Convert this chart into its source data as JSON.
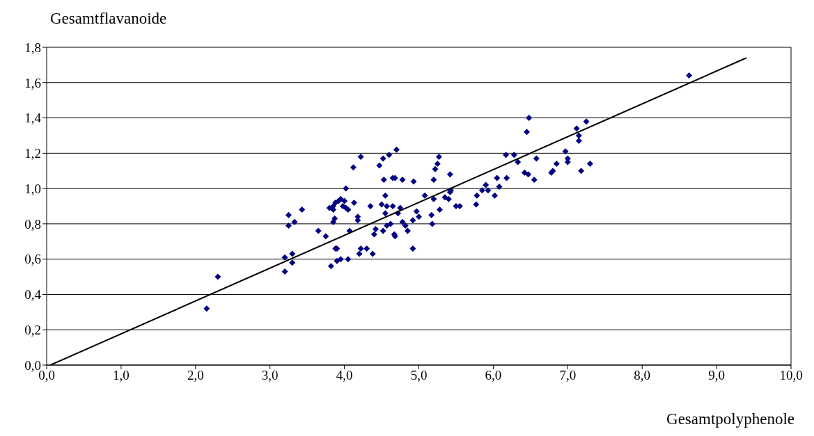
{
  "chart_data": {
    "type": "scatter",
    "xlabel": "Gesamtpolyphenole",
    "ylabel": "Gesamtflavanoide",
    "xlim": [
      0,
      10
    ],
    "ylim": [
      0,
      1.8
    ],
    "grid": "y",
    "xticks": [
      {
        "value": 0,
        "label": "0,0"
      },
      {
        "value": 1,
        "label": "1,0"
      },
      {
        "value": 2,
        "label": "2,0"
      },
      {
        "value": 3,
        "label": "3,0"
      },
      {
        "value": 4,
        "label": "4,0"
      },
      {
        "value": 5,
        "label": "5,0"
      },
      {
        "value": 6,
        "label": "6,0"
      },
      {
        "value": 7,
        "label": "7,0"
      },
      {
        "value": 8,
        "label": "8,0"
      },
      {
        "value": 9,
        "label": "9,0"
      },
      {
        "value": 10,
        "label": "10,0"
      }
    ],
    "yticks": [
      {
        "value": 0,
        "label": "0,0"
      },
      {
        "value": 0.2,
        "label": "0,2"
      },
      {
        "value": 0.4,
        "label": "0,4"
      },
      {
        "value": 0.6,
        "label": "0,6"
      },
      {
        "value": 0.8,
        "label": "0,8"
      },
      {
        "value": 1,
        "label": "1,0"
      },
      {
        "value": 1.2,
        "label": "1,2"
      },
      {
        "value": 1.4,
        "label": "1,4"
      },
      {
        "value": 1.6,
        "label": "1,6"
      },
      {
        "value": 1.8,
        "label": "1,8"
      }
    ],
    "series": [
      {
        "color": "#000080",
        "marker": "diamond",
        "x": [
          2.15,
          2.3,
          3.2,
          3.2,
          3.25,
          3.25,
          3.3,
          3.3,
          3.33,
          3.43,
          3.65,
          3.75,
          3.8,
          3.82,
          3.85,
          3.85,
          3.87,
          3.88,
          3.9,
          3.9,
          3.85,
          3.88,
          3.92,
          3.95,
          3.95,
          3.98,
          4.0,
          4.02,
          4.02,
          4.05,
          4.05,
          4.07,
          4.12,
          4.13,
          4.18,
          4.18,
          4.2,
          4.22,
          4.22,
          4.3,
          4.35,
          4.38,
          4.4,
          4.42,
          4.47,
          4.5,
          4.52,
          4.52,
          4.53,
          4.55,
          4.55,
          4.57,
          4.57,
          4.6,
          4.62,
          4.65,
          4.65,
          4.67,
          4.68,
          4.68,
          4.7,
          4.72,
          4.75,
          4.78,
          4.78,
          4.82,
          4.85,
          4.92,
          4.92,
          4.93,
          4.97,
          5.0,
          5.08,
          5.17,
          5.18,
          5.2,
          5.2,
          5.22,
          5.25,
          5.27,
          5.28,
          5.35,
          5.4,
          5.42,
          5.42,
          5.43,
          5.5,
          5.55,
          5.77,
          5.78,
          5.85,
          5.9,
          5.93,
          6.02,
          6.05,
          6.08,
          6.17,
          6.18,
          6.28,
          6.33,
          6.42,
          6.45,
          6.47,
          6.48,
          6.55,
          6.58,
          6.78,
          6.8,
          6.85,
          6.97,
          7.0,
          7.0,
          7.12,
          7.15,
          7.15,
          7.18,
          7.25,
          7.3,
          8.63
        ],
        "values": [
          0.32,
          0.5,
          0.53,
          0.61,
          0.79,
          0.85,
          0.58,
          0.63,
          0.81,
          0.88,
          0.76,
          0.73,
          0.89,
          0.56,
          0.88,
          0.81,
          0.83,
          0.66,
          0.66,
          0.59,
          0.9,
          0.92,
          0.93,
          0.94,
          0.6,
          0.9,
          0.93,
          0.89,
          1.0,
          0.6,
          0.88,
          0.76,
          1.12,
          0.92,
          0.82,
          0.84,
          0.63,
          0.66,
          1.18,
          0.66,
          0.9,
          0.63,
          0.74,
          0.77,
          1.13,
          0.91,
          1.17,
          0.76,
          1.05,
          0.86,
          0.96,
          0.79,
          0.9,
          1.19,
          0.8,
          1.06,
          0.9,
          0.74,
          1.06,
          0.73,
          1.22,
          0.86,
          0.89,
          1.05,
          0.81,
          0.79,
          0.76,
          0.66,
          0.82,
          1.04,
          0.87,
          0.84,
          0.96,
          0.85,
          0.8,
          1.05,
          0.94,
          1.11,
          1.14,
          1.18,
          0.88,
          0.95,
          0.94,
          0.98,
          1.08,
          0.99,
          0.9,
          0.9,
          0.91,
          0.96,
          0.99,
          1.02,
          0.99,
          0.96,
          1.06,
          1.01,
          1.19,
          1.06,
          1.19,
          1.15,
          1.09,
          1.32,
          1.08,
          1.4,
          1.05,
          1.17,
          1.09,
          1.1,
          1.14,
          1.21,
          1.15,
          1.17,
          1.34,
          1.3,
          1.27,
          1.1,
          1.38,
          1.14,
          1.64
        ]
      },
      {
        "type": "line",
        "color": "#000000",
        "marker": "none",
        "line_style": "solid",
        "x": [
          0.05,
          9.4
        ],
        "values": [
          0,
          1.74
        ]
      }
    ]
  }
}
